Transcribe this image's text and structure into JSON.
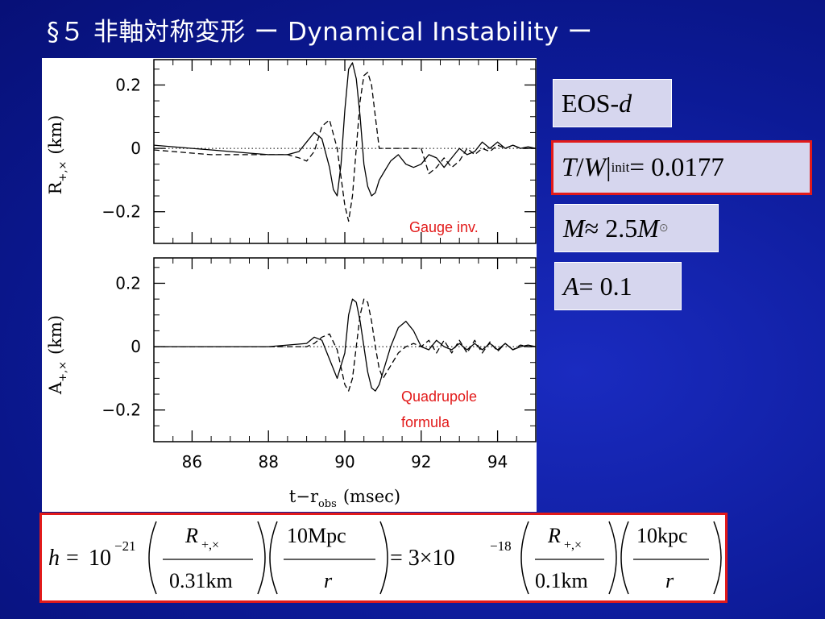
{
  "slide": {
    "title": "§５ 非軸対称変形 ー Dynamical Instability ー"
  },
  "params": {
    "eos_prefix": "EOS-",
    "eos_var": "d",
    "tw_T": "T",
    "tw_slash": " / ",
    "tw_W": "W",
    "tw_bar": " |",
    "tw_sub": "init",
    "tw_value": " = 0.0177",
    "mass_M": "M",
    "mass_approx": " ≈ 2.5",
    "mass_M2": "M",
    "mass_sub": "⊙",
    "a_A": "A",
    "a_value": " = 0.1"
  },
  "formula": {
    "h": "h",
    "eq": "=",
    "ten1": "10",
    "exp1": "−21",
    "R1": "R",
    "R1_sub": "+,×",
    "den1": "0.31km",
    "num2": "10Mpc",
    "r1": "r",
    "eq2": "= 3×10",
    "exp2": "−18",
    "R2": "R",
    "R2_sub": "+,×",
    "den2": "0.1km",
    "num3": "10kpc",
    "r2": "r"
  },
  "chart_data": [
    {
      "type": "line",
      "panel": "top",
      "ylabel": "R+,× (km)",
      "ylabel_main": "R",
      "ylabel_sub": "+,×",
      "ylabel_unit": "(km)",
      "ylim": [
        -0.3,
        0.28
      ],
      "xlim": [
        85,
        95
      ],
      "yticks": [
        "0.2",
        "0",
        "−0.2"
      ],
      "ytick_values": [
        0.2,
        0,
        -0.2
      ],
      "annotation": "Gauge  inv.",
      "series": [
        {
          "style": "solid",
          "x": [
            85.0,
            85.5,
            86.0,
            86.5,
            87.0,
            87.5,
            88.0,
            88.5,
            88.8,
            89.0,
            89.2,
            89.4,
            89.6,
            89.7,
            89.8,
            89.9,
            90.0,
            90.1,
            90.2,
            90.3,
            90.4,
            90.5,
            90.6,
            90.7,
            90.8,
            90.9,
            91.0,
            91.1,
            91.2,
            91.4,
            91.6,
            91.8,
            92.0,
            92.2,
            92.4,
            92.6,
            92.8,
            93.0,
            93.2,
            93.4,
            93.6,
            93.8,
            94.0,
            94.2,
            94.4,
            94.6,
            94.8,
            95.0
          ],
          "y": [
            0.01,
            0.005,
            0.0,
            -0.005,
            -0.01,
            -0.015,
            -0.02,
            -0.02,
            -0.01,
            0.02,
            0.05,
            0.03,
            -0.06,
            -0.13,
            -0.15,
            -0.05,
            0.12,
            0.25,
            0.27,
            0.22,
            0.1,
            -0.05,
            -0.12,
            -0.15,
            -0.14,
            -0.1,
            -0.08,
            -0.06,
            -0.04,
            -0.02,
            -0.05,
            -0.06,
            -0.05,
            -0.02,
            -0.03,
            -0.06,
            -0.03,
            0.0,
            -0.02,
            -0.01,
            0.02,
            0.0,
            0.02,
            0.0,
            0.01,
            0.0,
            0.005,
            0.0
          ]
        },
        {
          "style": "dashed",
          "x": [
            85.0,
            85.5,
            86.0,
            86.5,
            87.0,
            87.5,
            88.0,
            88.5,
            88.8,
            89.0,
            89.2,
            89.4,
            89.6,
            89.8,
            90.0,
            90.1,
            90.2,
            90.3,
            90.4,
            90.5,
            90.6,
            90.7,
            90.8,
            90.9,
            91.0,
            91.2,
            91.4,
            91.6,
            91.8,
            92.0,
            92.2,
            92.4,
            92.6,
            92.8,
            93.0,
            93.2,
            93.4,
            93.6,
            93.8,
            94.0,
            94.2,
            94.4,
            94.6,
            94.8,
            95.0
          ],
          "y": [
            -0.005,
            -0.01,
            -0.015,
            -0.02,
            -0.02,
            -0.02,
            -0.02,
            -0.02,
            -0.03,
            -0.04,
            -0.01,
            0.07,
            0.09,
            0.0,
            -0.18,
            -0.23,
            -0.15,
            0.0,
            0.15,
            0.23,
            0.24,
            0.2,
            0.1,
            0.0,
            0.0,
            0.0,
            0.0,
            0.0,
            0.0,
            0.0,
            -0.08,
            -0.06,
            -0.03,
            -0.06,
            -0.04,
            0.0,
            -0.02,
            0.0,
            -0.01,
            0.01,
            0.0,
            0.01,
            0.0,
            0.0,
            0.0
          ]
        },
        {
          "style": "dotted",
          "x": [
            85,
            95
          ],
          "y": [
            0,
            0
          ]
        }
      ]
    },
    {
      "type": "line",
      "panel": "bottom",
      "xlabel": "t−r_obs (msec)",
      "xlabel_main": "t−r",
      "xlabel_sub": "obs",
      "xlabel_unit": "(msec)",
      "ylabel": "A+,× (km)",
      "ylabel_main": "A",
      "ylabel_sub": "+,×",
      "ylabel_unit": "(km)",
      "ylim": [
        -0.3,
        0.28
      ],
      "xlim": [
        85,
        95
      ],
      "xticks": [
        "86",
        "88",
        "90",
        "92",
        "94"
      ],
      "xtick_values": [
        86,
        88,
        90,
        92,
        94
      ],
      "yticks": [
        "0.2",
        "0",
        "−0.2"
      ],
      "ytick_values": [
        0.2,
        0,
        -0.2
      ],
      "annotation_lines": [
        "Quadrupole",
        "formula"
      ],
      "series": [
        {
          "style": "solid",
          "x": [
            85.0,
            86.0,
            87.0,
            88.0,
            88.5,
            89.0,
            89.2,
            89.4,
            89.6,
            89.8,
            90.0,
            90.1,
            90.2,
            90.3,
            90.4,
            90.5,
            90.6,
            90.7,
            90.8,
            90.9,
            91.0,
            91.2,
            91.4,
            91.6,
            91.8,
            92.0,
            92.2,
            92.4,
            92.6,
            92.8,
            93.0,
            93.2,
            93.4,
            93.6,
            93.8,
            94.0,
            94.2,
            94.4,
            94.6,
            94.8,
            95.0
          ],
          "y": [
            0.0,
            0.0,
            0.0,
            0.0,
            0.005,
            0.01,
            0.03,
            0.02,
            -0.04,
            -0.1,
            -0.02,
            0.1,
            0.15,
            0.14,
            0.08,
            0.0,
            -0.08,
            -0.13,
            -0.14,
            -0.12,
            -0.08,
            0.0,
            0.06,
            0.08,
            0.05,
            0.0,
            -0.01,
            0.02,
            0.0,
            -0.01,
            0.01,
            -0.01,
            0.01,
            -0.01,
            0.01,
            -0.01,
            0.01,
            -0.01,
            0.0,
            0.005,
            0.0
          ]
        },
        {
          "style": "dashed",
          "x": [
            85.0,
            86.0,
            87.0,
            88.0,
            88.5,
            89.0,
            89.2,
            89.4,
            89.6,
            89.8,
            90.0,
            90.1,
            90.2,
            90.3,
            90.4,
            90.5,
            90.6,
            90.7,
            90.8,
            90.9,
            91.0,
            91.2,
            91.4,
            91.6,
            91.8,
            92.0,
            92.2,
            92.4,
            92.6,
            92.8,
            93.0,
            93.2,
            93.4,
            93.6,
            93.8,
            94.0,
            94.2,
            94.4,
            94.6,
            94.8,
            95.0
          ],
          "y": [
            0.0,
            0.0,
            0.0,
            0.0,
            0.0,
            0.0,
            0.01,
            0.03,
            0.04,
            -0.01,
            -0.12,
            -0.14,
            -0.1,
            0.0,
            0.1,
            0.15,
            0.14,
            0.08,
            0.0,
            -0.07,
            -0.1,
            -0.06,
            -0.02,
            0.0,
            0.01,
            0.0,
            0.02,
            -0.02,
            0.02,
            -0.02,
            0.02,
            -0.02,
            0.02,
            -0.02,
            0.015,
            -0.015,
            0.01,
            -0.01,
            0.005,
            0.0,
            0.0
          ]
        },
        {
          "style": "dotted",
          "x": [
            85,
            95
          ],
          "y": [
            0,
            0
          ]
        }
      ]
    }
  ]
}
